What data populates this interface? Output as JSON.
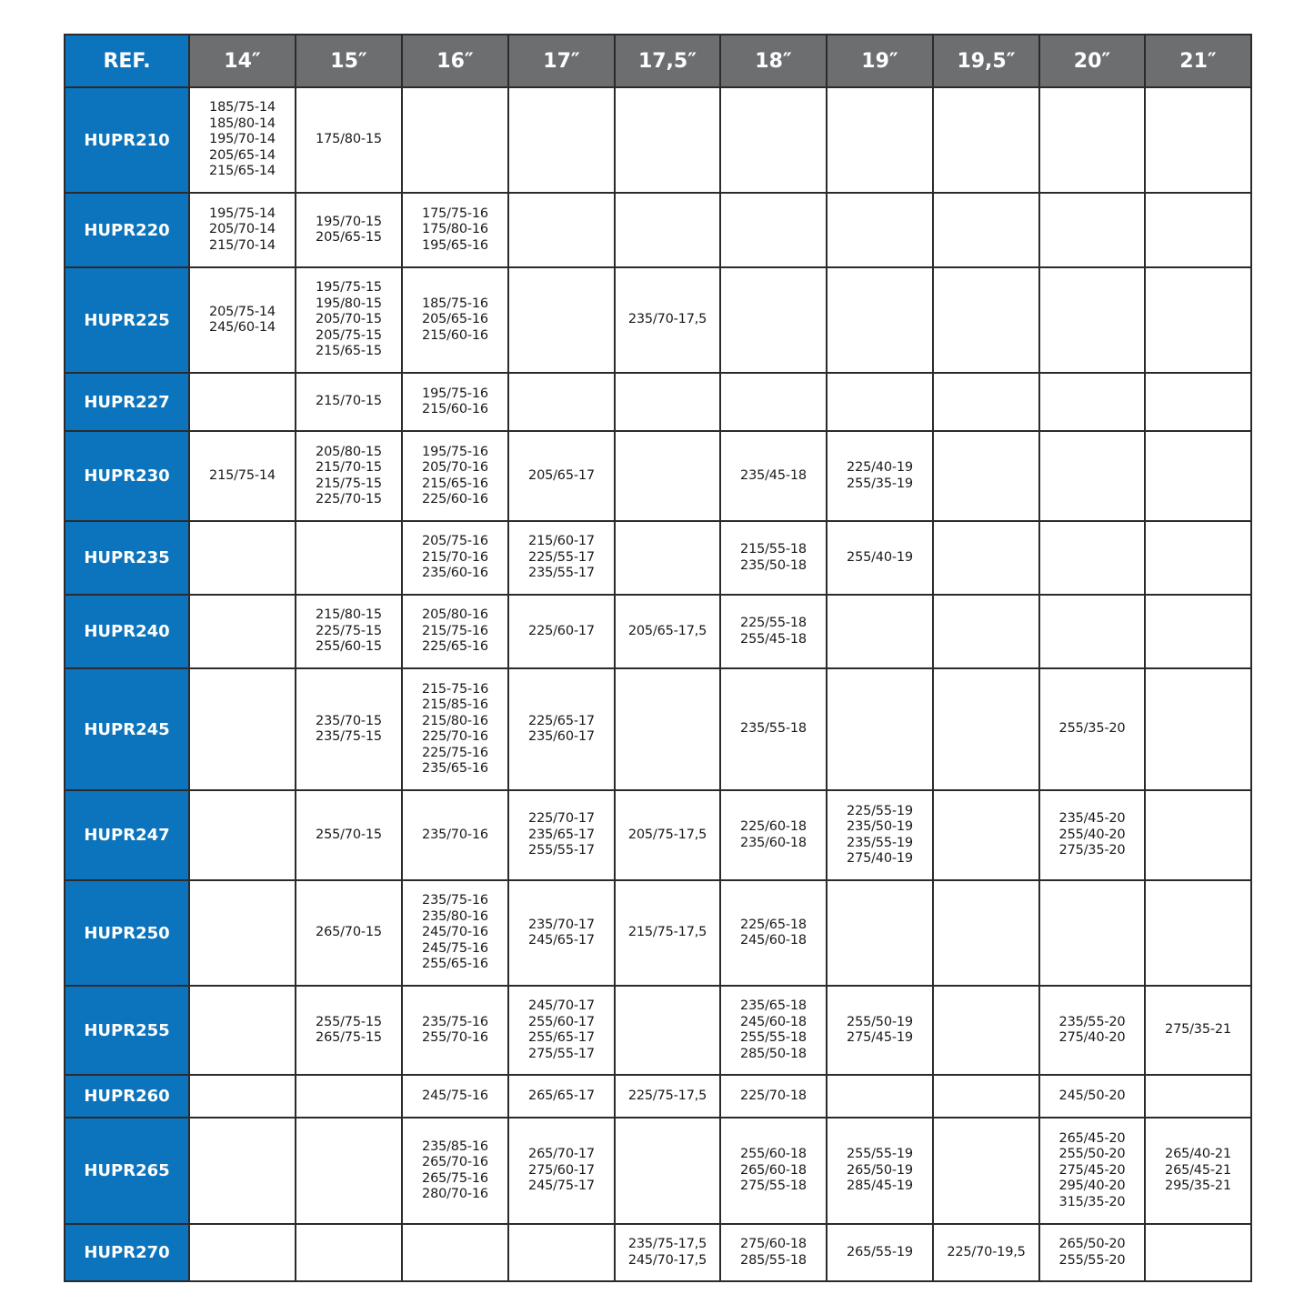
{
  "header": [
    "REF.",
    "14″",
    "15″",
    "16″",
    "17″",
    "17,5″",
    "18″",
    "19″",
    "19,5″",
    "20″",
    "21″"
  ],
  "colors": {
    "ref_blue": "#0b74bc",
    "header_grey": "#6d6e70"
  },
  "rows": [
    {
      "ref": "HUPR210",
      "cells": [
        "185/75-14\n185/80-14\n195/70-14\n205/65-14\n215/65-14",
        "175/80-15",
        "",
        "",
        "",
        "",
        "",
        "",
        "",
        ""
      ]
    },
    {
      "ref": "HUPR220",
      "cells": [
        "195/75-14\n205/70-14\n215/70-14",
        "195/70-15\n205/65-15",
        "175/75-16\n175/80-16\n195/65-16",
        "",
        "",
        "",
        "",
        "",
        "",
        ""
      ]
    },
    {
      "ref": "HUPR225",
      "cells": [
        "205/75-14\n245/60-14",
        "195/75-15\n195/80-15\n205/70-15\n205/75-15\n215/65-15",
        "185/75-16\n205/65-16\n215/60-16",
        "",
        "235/70-17,5",
        "",
        "",
        "",
        "",
        ""
      ]
    },
    {
      "ref": "HUPR227",
      "cells": [
        "",
        "215/70-15",
        "195/75-16\n215/60-16",
        "",
        "",
        "",
        "",
        "",
        "",
        ""
      ]
    },
    {
      "ref": "HUPR230",
      "cells": [
        "215/75-14",
        "205/80-15\n215/70-15\n215/75-15\n225/70-15",
        "195/75-16\n205/70-16\n215/65-16\n225/60-16",
        "205/65-17",
        "",
        "235/45-18",
        "225/40-19\n255/35-19",
        "",
        "",
        ""
      ]
    },
    {
      "ref": "HUPR235",
      "cells": [
        "",
        "",
        "205/75-16\n215/70-16\n235/60-16",
        "215/60-17\n225/55-17\n235/55-17",
        "",
        "215/55-18\n235/50-18",
        "255/40-19",
        "",
        "",
        ""
      ]
    },
    {
      "ref": "HUPR240",
      "cells": [
        "",
        "215/80-15\n225/75-15\n255/60-15",
        "205/80-16\n215/75-16\n225/65-16",
        "225/60-17",
        "205/65-17,5",
        "225/55-18\n255/45-18",
        "",
        "",
        "",
        ""
      ]
    },
    {
      "ref": "HUPR245",
      "cells": [
        "",
        "235/70-15\n235/75-15",
        "215-75-16\n215/85-16\n215/80-16\n225/70-16\n225/75-16\n235/65-16",
        "225/65-17\n235/60-17",
        "",
        "235/55-18",
        "",
        "",
        "255/35-20",
        ""
      ]
    },
    {
      "ref": "HUPR247",
      "cells": [
        "",
        "255/70-15",
        "235/70-16",
        "225/70-17\n235/65-17\n255/55-17",
        "205/75-17,5",
        "225/60-18\n235/60-18",
        "225/55-19\n235/50-19\n235/55-19\n275/40-19",
        "",
        "235/45-20\n255/40-20\n275/35-20",
        ""
      ]
    },
    {
      "ref": "HUPR250",
      "cells": [
        "",
        "265/70-15",
        "235/75-16\n235/80-16\n245/70-16\n245/75-16\n255/65-16",
        "235/70-17\n245/65-17",
        "215/75-17,5",
        "225/65-18\n245/60-18",
        "",
        "",
        "",
        ""
      ]
    },
    {
      "ref": "HUPR255",
      "cells": [
        "",
        "255/75-15\n265/75-15",
        "235/75-16\n255/70-16",
        "245/70-17\n255/60-17\n255/65-17\n275/55-17",
        "",
        "235/65-18\n245/60-18\n255/55-18\n285/50-18",
        "255/50-19\n275/45-19",
        "",
        "235/55-20\n275/40-20",
        "275/35-21"
      ]
    },
    {
      "ref": "HUPR260",
      "cells": [
        "",
        "",
        "245/75-16",
        "265/65-17",
        "225/75-17,5",
        "225/70-18",
        "",
        "",
        "245/50-20",
        ""
      ]
    },
    {
      "ref": "HUPR265",
      "cells": [
        "",
        "",
        "235/85-16\n265/70-16\n265/75-16\n280/70-16",
        "265/70-17\n275/60-17\n245/75-17",
        "",
        "255/60-18\n265/60-18\n275/55-18",
        "255/55-19\n265/50-19\n285/45-19",
        "",
        "265/45-20\n255/50-20\n275/45-20\n295/40-20\n315/35-20",
        "265/40-21\n265/45-21\n295/35-21"
      ]
    },
    {
      "ref": "HUPR270",
      "cells": [
        "",
        "",
        "",
        "",
        "235/75-17,5\n245/70-17,5",
        "275/60-18\n285/55-18",
        "265/55-19",
        "225/70-19,5",
        "265/50-20\n255/55-20",
        ""
      ]
    }
  ]
}
